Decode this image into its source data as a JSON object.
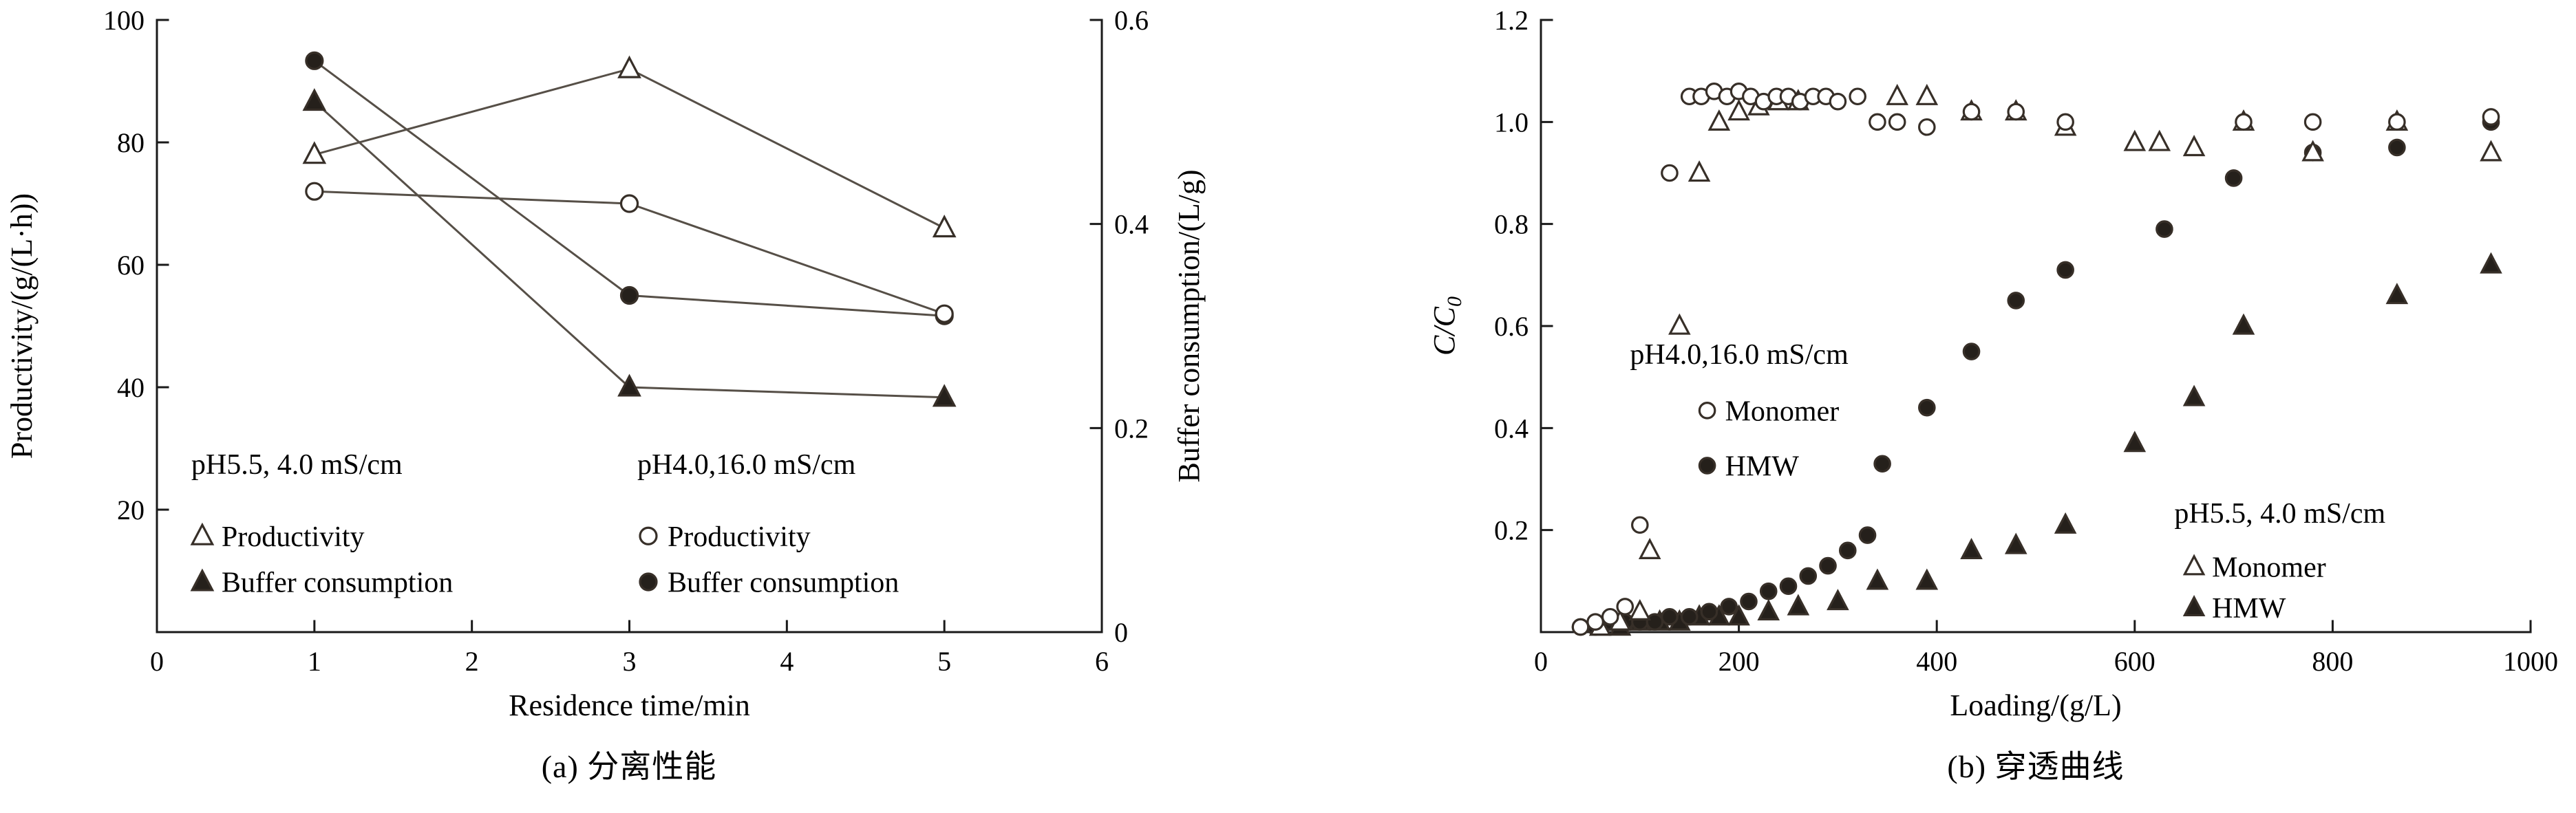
{
  "colors": {
    "text": "#000000",
    "axis": "#1a1a1a",
    "line": "#564f47",
    "marker_stroke": "#372f28",
    "marker_fill": "#25201b",
    "open_fill": "#ffffff"
  },
  "chart_data": [
    {
      "id": "a",
      "type": "line",
      "caption": "(a) 分离性能",
      "xlabel": "Residence time/min",
      "ylabel_left": "Productivity/(g/(L·h))",
      "ylabel_right": "Buffer consumption/(L/g)",
      "xlim": [
        0,
        6
      ],
      "ylim_left": [
        0,
        100
      ],
      "ylim_right": [
        0,
        0.6
      ],
      "xticks": {
        "values": [
          0,
          1,
          2,
          3,
          4,
          5,
          6
        ],
        "labels": [
          "0",
          "1",
          "2",
          "3",
          "4",
          "5",
          "6"
        ]
      },
      "yticks_left": {
        "values": [
          0,
          20,
          40,
          60,
          80,
          100
        ],
        "labels": [
          "",
          "20",
          "40",
          "60",
          "80",
          "100"
        ]
      },
      "yticks_right": {
        "values": [
          0,
          0.2,
          0.4,
          0.6
        ],
        "labels": [
          "0",
          "0.2",
          "0.4",
          "0.6"
        ]
      },
      "series": [
        {
          "name": "pH5.5 Buffer consumption",
          "marker": "triangle-filled",
          "axis": "right",
          "line": true,
          "x": [
            1,
            3,
            5
          ],
          "y": [
            0.52,
            0.24,
            0.23
          ]
        },
        {
          "name": "pH4.0 Buffer consumption",
          "marker": "circle-filled",
          "axis": "right",
          "line": true,
          "x": [
            1,
            3,
            5
          ],
          "y": [
            0.56,
            0.33,
            0.31
          ]
        },
        {
          "name": "pH5.5 Productivity",
          "marker": "triangle-open",
          "axis": "left",
          "line": true,
          "x": [
            1,
            3,
            5
          ],
          "y": [
            78,
            92,
            66
          ]
        },
        {
          "name": "pH4.0 Productivity",
          "marker": "circle-open",
          "axis": "left",
          "line": true,
          "x": [
            1,
            3,
            5
          ],
          "y": [
            72,
            70,
            52
          ]
        }
      ],
      "legend_groups": [
        {
          "header": "pH5.5, 4.0 mS/cm",
          "fx": 0.048,
          "fy_header": 0.725,
          "fy_items": 0.843,
          "dy": 0.075,
          "items": [
            {
              "marker": "triangle-open",
              "label": "Productivity"
            },
            {
              "marker": "triangle-filled",
              "label": "Buffer consumption"
            }
          ]
        },
        {
          "header": "pH4.0,16.0 mS/cm",
          "fx": 0.52,
          "fy_header": 0.725,
          "fy_items": 0.843,
          "dy": 0.075,
          "items": [
            {
              "marker": "circle-open",
              "label": "Productivity"
            },
            {
              "marker": "circle-filled",
              "label": "Buffer consumption"
            }
          ]
        }
      ]
    },
    {
      "id": "b",
      "type": "scatter",
      "caption": "(b) 穿透曲线",
      "xlabel": "Loading/(g/L)",
      "ylabel": "C/C0",
      "ylabel_main": "C/C",
      "ylabel_sub": "0",
      "xlim": [
        0,
        1000
      ],
      "ylim": [
        0,
        1.2
      ],
      "xticks": {
        "values": [
          0,
          200,
          400,
          600,
          800,
          1000
        ],
        "labels": [
          "0",
          "200",
          "400",
          "600",
          "800",
          "1000"
        ]
      },
      "yticks": {
        "values": [
          0,
          0.2,
          0.4,
          0.6,
          0.8,
          1.0,
          1.2
        ],
        "labels": [
          "",
          "0.2",
          "0.4",
          "0.6",
          "0.8",
          "1.0",
          "1.2"
        ]
      },
      "series": [
        {
          "name": "pH5.5 HMW",
          "marker": "triangle-filled",
          "line": false,
          "x": [
            60,
            80,
            100,
            120,
            140,
            160,
            180,
            200,
            230,
            260,
            300,
            340,
            390,
            435,
            480,
            530,
            600,
            660,
            710,
            865,
            960
          ],
          "y": [
            0.01,
            0.01,
            0.02,
            0.02,
            0.02,
            0.03,
            0.03,
            0.03,
            0.04,
            0.05,
            0.06,
            0.1,
            0.1,
            0.16,
            0.17,
            0.21,
            0.37,
            0.46,
            0.6,
            0.66,
            0.72
          ]
        },
        {
          "name": "pH4.0 HMW",
          "marker": "circle-filled",
          "line": false,
          "x": [
            40,
            55,
            70,
            85,
            100,
            115,
            130,
            150,
            170,
            190,
            210,
            230,
            250,
            270,
            290,
            310,
            330,
            345,
            390,
            435,
            480,
            530,
            630,
            700,
            780,
            865,
            960
          ],
          "y": [
            0.01,
            0.01,
            0.02,
            0.02,
            0.02,
            0.02,
            0.03,
            0.03,
            0.04,
            0.05,
            0.06,
            0.08,
            0.09,
            0.11,
            0.13,
            0.16,
            0.19,
            0.33,
            0.44,
            0.55,
            0.65,
            0.71,
            0.79,
            0.89,
            0.94,
            0.95,
            1.0
          ]
        },
        {
          "name": "pH5.5 Monomer",
          "marker": "triangle-open",
          "line": false,
          "x": [
            60,
            80,
            100,
            110,
            140,
            160,
            180,
            200,
            220,
            240,
            260,
            360,
            390,
            435,
            480,
            530,
            600,
            625,
            660,
            710,
            780,
            865,
            960
          ],
          "y": [
            0.01,
            0.02,
            0.04,
            0.16,
            0.6,
            0.9,
            1.0,
            1.02,
            1.03,
            1.04,
            1.04,
            1.05,
            1.05,
            1.02,
            1.02,
            0.99,
            0.96,
            0.96,
            0.95,
            1.0,
            0.94,
            1.0,
            0.94
          ]
        },
        {
          "name": "pH4.0 Monomer",
          "marker": "circle-open",
          "line": false,
          "x": [
            40,
            55,
            70,
            85,
            100,
            130,
            150,
            162,
            175,
            188,
            200,
            212,
            225,
            238,
            250,
            262,
            275,
            288,
            300,
            320,
            340,
            360,
            390,
            435,
            480,
            530,
            710,
            780,
            865,
            960
          ],
          "y": [
            0.01,
            0.02,
            0.03,
            0.05,
            0.21,
            0.9,
            1.05,
            1.05,
            1.06,
            1.05,
            1.06,
            1.05,
            1.04,
            1.05,
            1.05,
            1.04,
            1.05,
            1.05,
            1.04,
            1.05,
            1.0,
            1.0,
            0.99,
            1.02,
            1.02,
            1.0,
            1.0,
            1.0,
            1.0,
            1.01
          ]
        }
      ],
      "annotations": [
        {
          "text": "pH4.0,16.0 mS/cm",
          "fx": 0.09,
          "fy": 0.545
        },
        {
          "marker": "circle-open",
          "text": "Monomer",
          "fx": 0.168,
          "fy": 0.638
        },
        {
          "marker": "circle-filled",
          "text": "HMW",
          "fx": 0.168,
          "fy": 0.728
        },
        {
          "text": "pH5.5, 4.0 mS/cm",
          "fx": 0.64,
          "fy": 0.805
        },
        {
          "marker": "triangle-open",
          "text": "Monomer",
          "fx": 0.66,
          "fy": 0.893
        },
        {
          "marker": "triangle-filled",
          "text": "HMW",
          "fx": 0.66,
          "fy": 0.96
        }
      ]
    }
  ]
}
